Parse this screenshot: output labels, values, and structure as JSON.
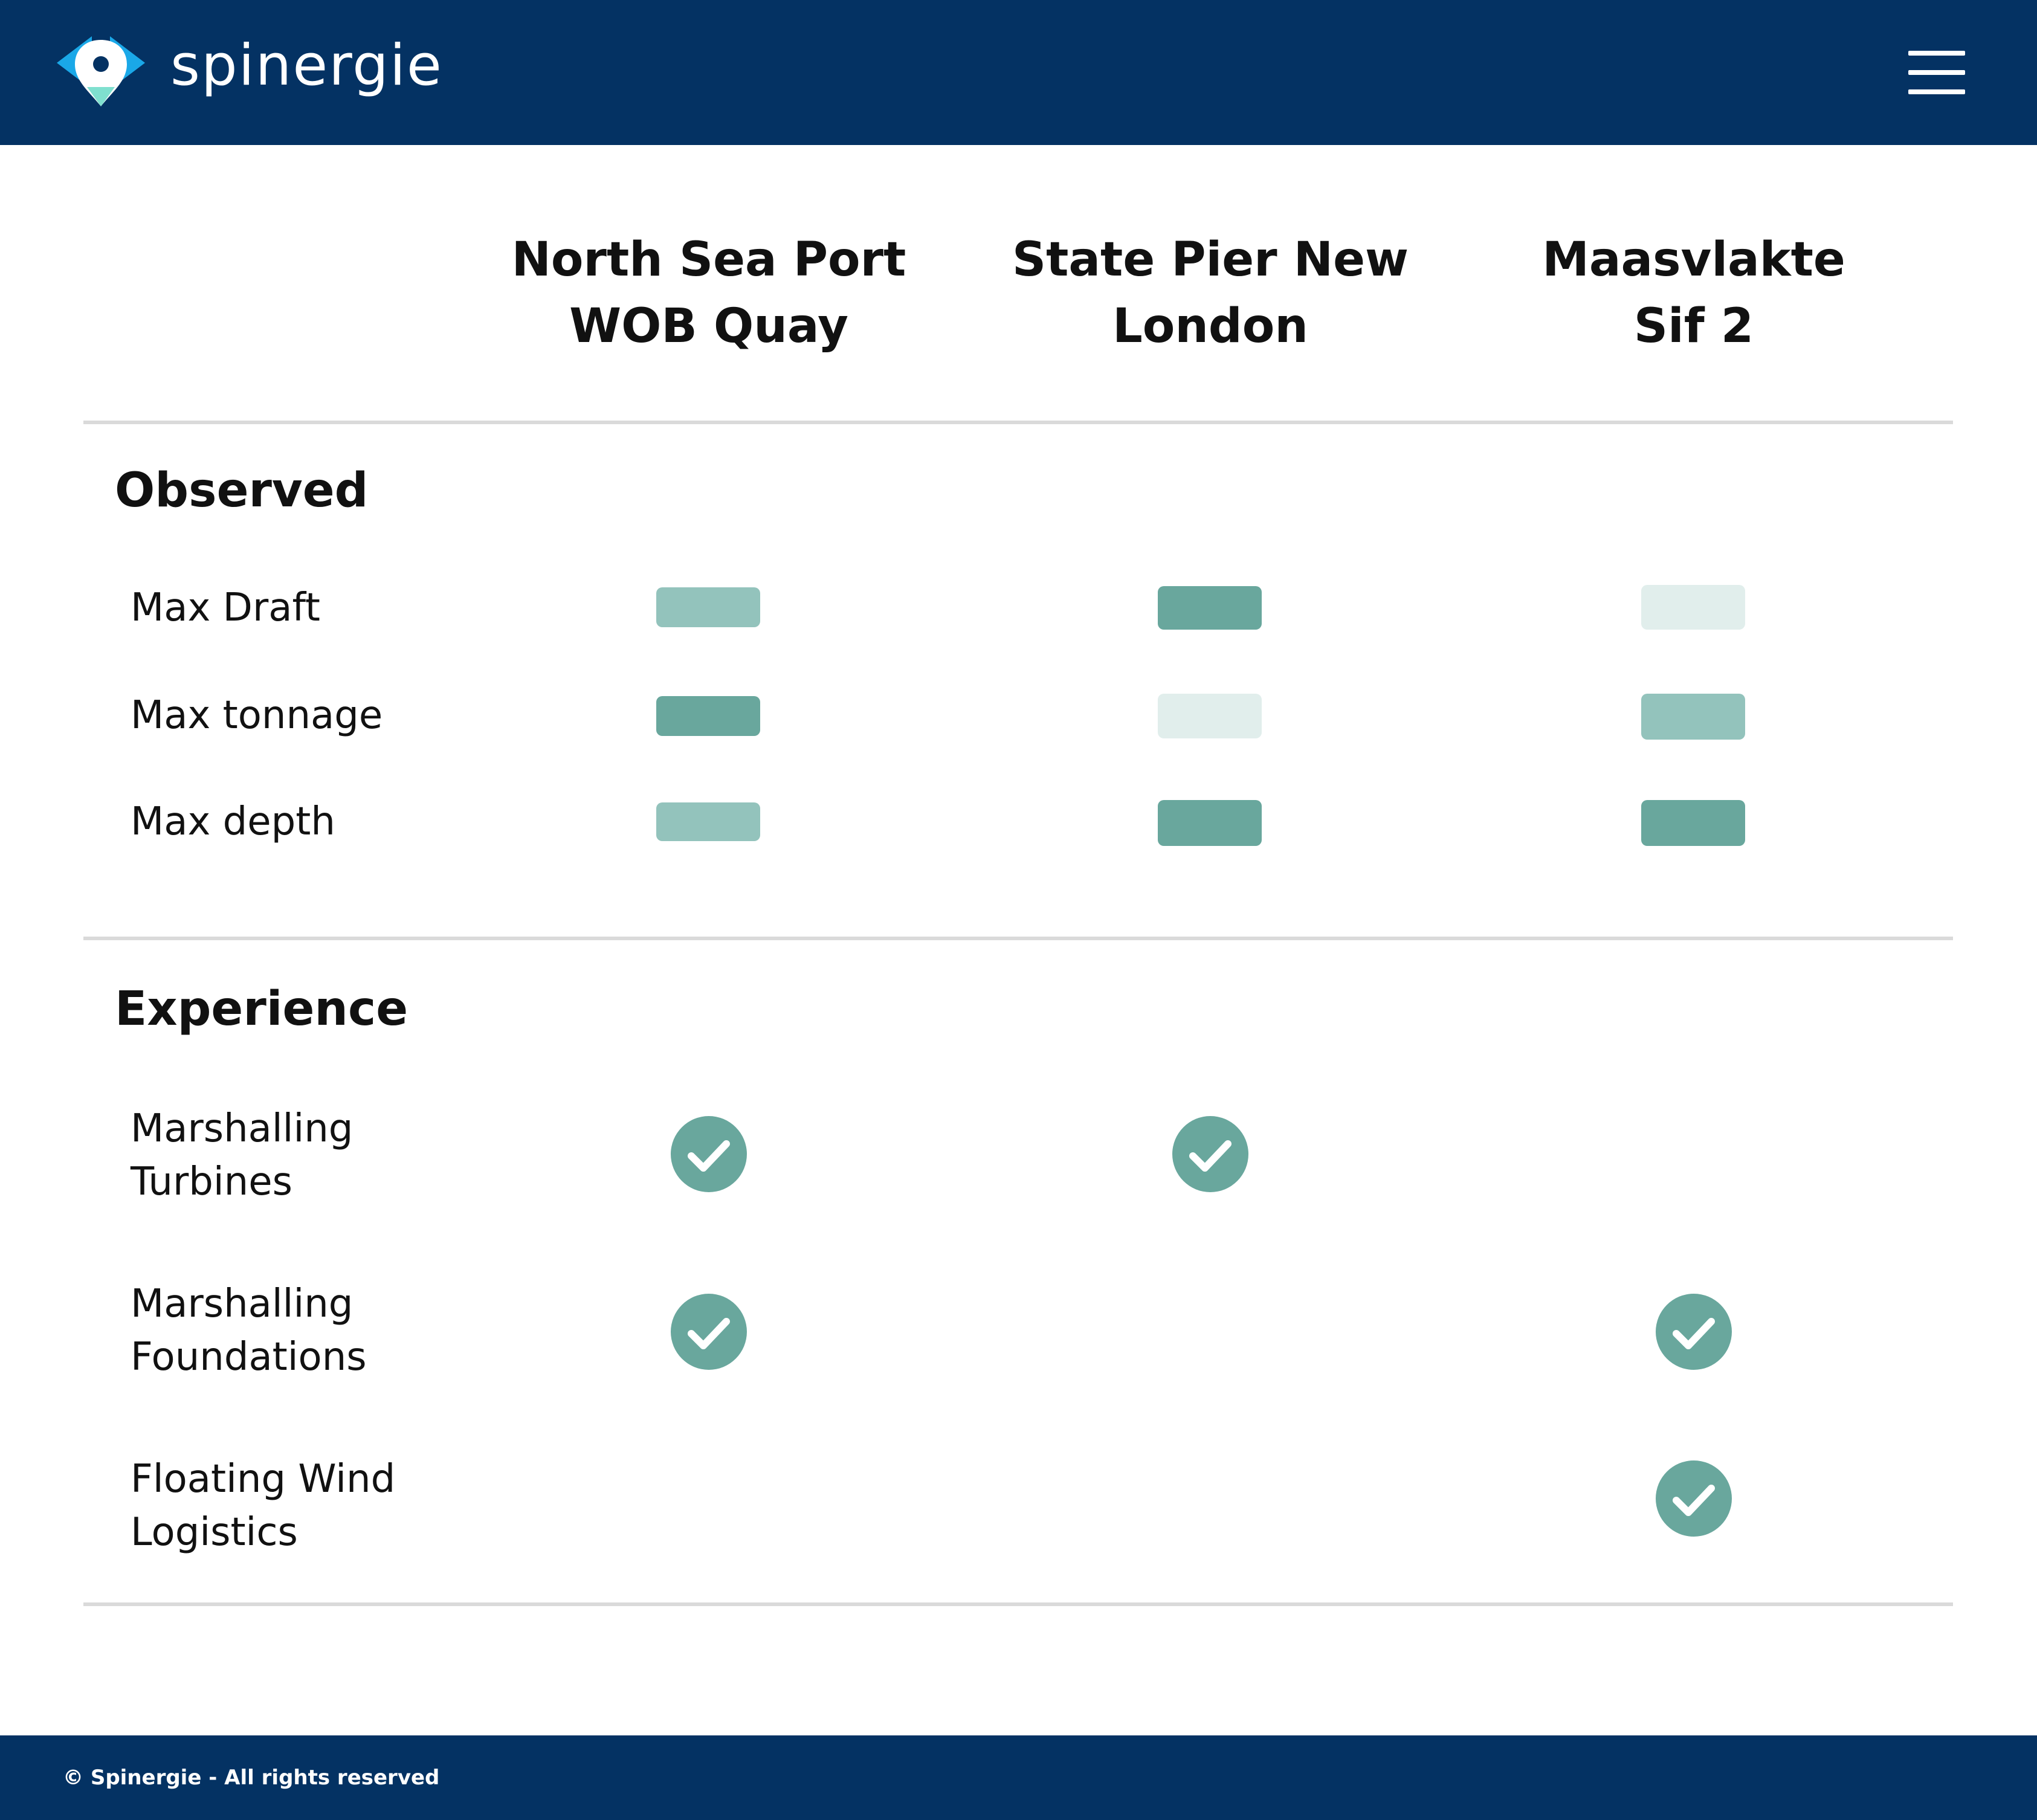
{
  "header": {
    "brand": "spinergie",
    "logo_icon": "spinergie-logo-icon",
    "menu_icon": "hamburger-menu-icon",
    "background_color": "#043263"
  },
  "columns": [
    {
      "line1": "North Sea Port",
      "line2": "WOB Quay"
    },
    {
      "line1": "State Pier New",
      "line2": "London"
    },
    {
      "line1": "Maasvlakte",
      "line2": "Sif 2"
    }
  ],
  "observed": {
    "title": "Observed",
    "legend_levels": {
      "low": "#e1eeec",
      "medium": "#93c3bc",
      "high": "#69a79d"
    },
    "rows": [
      {
        "label": "Max Draft",
        "levels": [
          "medium",
          "high",
          "low"
        ]
      },
      {
        "label": "Max tonnage",
        "levels": [
          "high",
          "low",
          "medium"
        ]
      },
      {
        "label": "Max depth",
        "levels": [
          "medium",
          "high",
          "high"
        ]
      }
    ]
  },
  "experience": {
    "title": "Experience",
    "check_icon": "check-circle-icon",
    "check_color": "#69a79d",
    "rows": [
      {
        "line1": "Marshalling",
        "line2": "Turbines",
        "checks": [
          true,
          true,
          false
        ]
      },
      {
        "line1": "Marshalling",
        "line2": "Foundations",
        "checks": [
          true,
          false,
          true
        ]
      },
      {
        "line1": "Floating Wind",
        "line2": "Logistics",
        "checks": [
          false,
          false,
          true
        ]
      }
    ]
  },
  "footer": {
    "copyright": "© Spinergie - All rights reserved"
  }
}
